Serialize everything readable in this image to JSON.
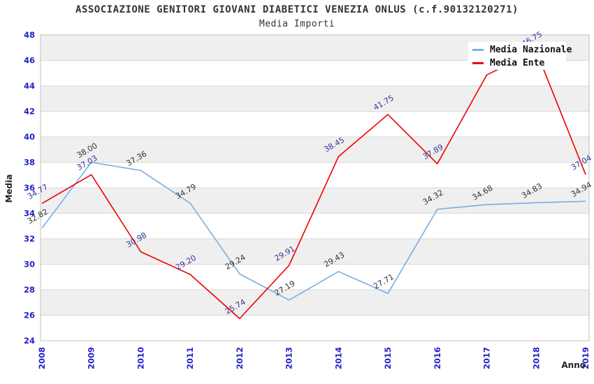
{
  "header": {
    "title": "ASSOCIAZIONE GENITORI GIOVANI DIABETICI VENEZIA ONLUS (c.f.90132120271)",
    "subtitle": "Media Importi"
  },
  "chart_data": {
    "type": "line",
    "title": "ASSOCIAZIONE GENITORI GIOVANI DIABETICI VENEZIA ONLUS (c.f.90132120271)",
    "subtitle": "Media Importi",
    "xlabel": "Anno",
    "ylabel": "Media",
    "categories": [
      "2008",
      "2009",
      "2010",
      "2011",
      "2012",
      "2013",
      "2014",
      "2015",
      "2016",
      "2017",
      "2018",
      "2019"
    ],
    "series": [
      {
        "name": "Media Nazionale",
        "color": "#7aaee0",
        "label_color": "#333333",
        "values": [
          32.82,
          38.0,
          37.36,
          34.79,
          29.24,
          27.19,
          29.43,
          27.71,
          34.32,
          34.68,
          34.83,
          34.94
        ]
      },
      {
        "name": "Media Ente",
        "color": "#ee0000",
        "label_color": "#333399",
        "values": [
          34.77,
          37.03,
          30.98,
          29.2,
          25.74,
          29.91,
          38.45,
          41.75,
          37.89,
          44.86,
          46.75,
          37.04
        ]
      }
    ],
    "ylim": [
      24,
      48
    ],
    "ytick_step": 2,
    "yticks": [
      24,
      26,
      28,
      30,
      32,
      34,
      36,
      38,
      40,
      42,
      44,
      46,
      48
    ],
    "grid": true,
    "legend_position": "top-right",
    "colors": {
      "band": "#efefef",
      "grid": "#d9d9d9",
      "border": "#bfbfbf",
      "tick_label": "#2222cc",
      "axis_title": "#222222"
    }
  }
}
